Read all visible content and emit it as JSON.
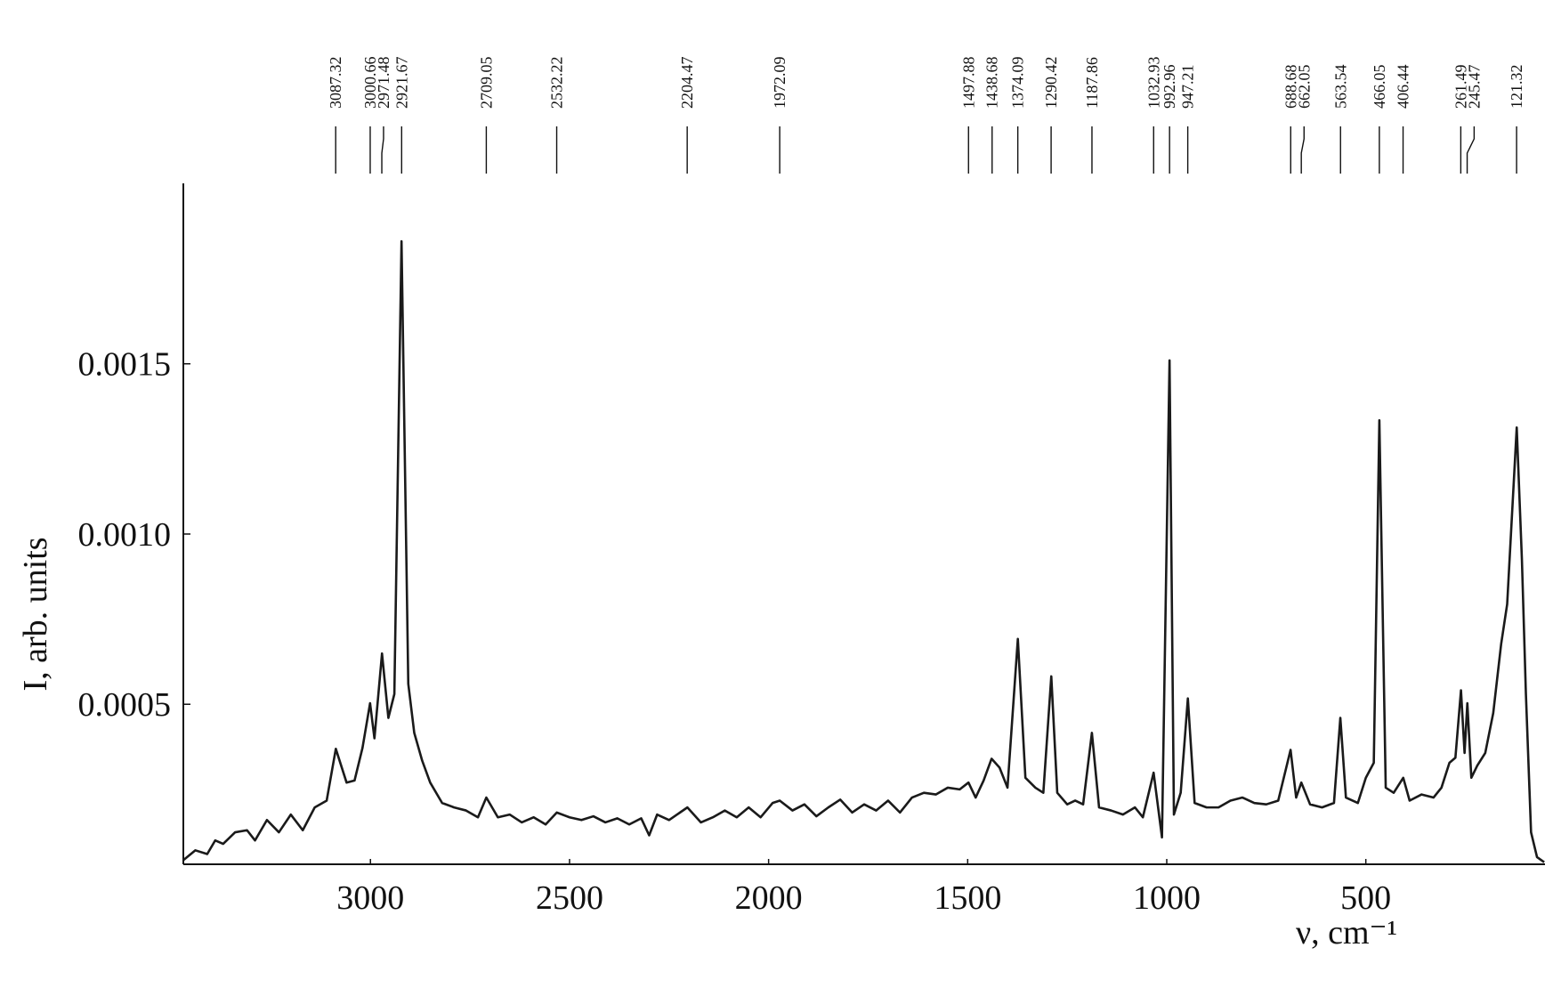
{
  "chart_data": {
    "type": "line",
    "y_label": "I, arb. units",
    "x_label": "ν, cm⁻¹",
    "color": "#1a1a1a",
    "xlim": [
      3470,
      50
    ],
    "ylim": [
      3e-05,
      0.00203
    ],
    "xticks": [
      3000,
      2500,
      2000,
      1500,
      1000,
      500
    ],
    "yticks": [
      0.0005,
      {
        "value": 0.001,
        "label": "0.0010"
      },
      0.0015
    ],
    "peak_labels": [
      3087.32,
      3000.66,
      2971.48,
      2921.67,
      2709.05,
      2532.22,
      2204.47,
      1972.09,
      1497.88,
      1438.68,
      1374.09,
      1290.42,
      1187.86,
      1032.93,
      992.96,
      947.21,
      688.68,
      662.05,
      563.54,
      466.05,
      406.44,
      261.49,
      245.47,
      121.32
    ],
    "x": [
      3470,
      3440,
      3410,
      3390,
      3370,
      3340,
      3310,
      3290,
      3260,
      3230,
      3200,
      3170,
      3140,
      3110,
      3087,
      3060,
      3040,
      3020,
      3001,
      2990,
      2971,
      2955,
      2940,
      2922,
      2905,
      2890,
      2870,
      2850,
      2820,
      2790,
      2760,
      2730,
      2709,
      2680,
      2650,
      2620,
      2590,
      2560,
      2532,
      2500,
      2470,
      2440,
      2410,
      2380,
      2350,
      2320,
      2300,
      2280,
      2250,
      2204,
      2170,
      2140,
      2110,
      2080,
      2050,
      2020,
      1990,
      1972,
      1940,
      1910,
      1880,
      1850,
      1820,
      1790,
      1760,
      1730,
      1700,
      1670,
      1640,
      1610,
      1580,
      1550,
      1520,
      1498,
      1480,
      1460,
      1440,
      1420,
      1400,
      1374,
      1355,
      1330,
      1310,
      1290,
      1275,
      1250,
      1230,
      1210,
      1188,
      1170,
      1140,
      1110,
      1080,
      1060,
      1033,
      1012,
      993,
      982,
      965,
      947,
      930,
      900,
      870,
      840,
      810,
      780,
      750,
      720,
      689,
      675,
      662,
      640,
      610,
      580,
      564,
      550,
      520,
      500,
      480,
      466,
      450,
      430,
      406,
      390,
      360,
      330,
      310,
      290,
      275,
      261,
      252,
      245,
      235,
      220,
      200,
      180,
      160,
      145,
      121,
      108,
      98,
      85,
      70,
      52
    ],
    "values": [
      4.2e-05,
      7.1e-05,
      6e-05,
      0.0001,
      9e-05,
      0.000124,
      0.00013,
      0.0001,
      0.00016,
      0.000124,
      0.000176,
      0.00013,
      0.000197,
      0.000217,
      0.000369,
      0.00027,
      0.000276,
      0.000372,
      0.000503,
      0.0004,
      0.000649,
      0.00046,
      0.00053,
      0.00186,
      0.00056,
      0.000416,
      0.000334,
      0.00027,
      0.00021,
      0.000197,
      0.000188,
      0.000168,
      0.000226,
      0.000168,
      0.000176,
      0.000153,
      0.000168,
      0.000147,
      0.000182,
      0.000168,
      0.00016,
      0.000171,
      0.000153,
      0.000165,
      0.000147,
      0.000165,
      0.000115,
      0.000176,
      0.00016,
      0.000197,
      0.000153,
      0.000168,
      0.000188,
      0.000168,
      0.000197,
      0.000168,
      0.00021,
      0.000217,
      0.000188,
      0.000206,
      0.000171,
      0.000197,
      0.00022,
      0.000182,
      0.000206,
      0.000188,
      0.000217,
      0.000182,
      0.000226,
      0.00024,
      0.000235,
      0.000255,
      0.00025,
      0.00027,
      0.000226,
      0.000276,
      0.00034,
      0.000314,
      0.000255,
      0.000692,
      0.000284,
      0.000255,
      0.00024,
      0.000582,
      0.00024,
      0.000206,
      0.000217,
      0.000206,
      0.000416,
      0.000197,
      0.000188,
      0.000176,
      0.000197,
      0.000168,
      0.000299,
      0.000109,
      0.00151,
      0.000176,
      0.00024,
      0.000517,
      0.00021,
      0.000197,
      0.000197,
      0.000217,
      0.000226,
      0.00021,
      0.000206,
      0.000217,
      0.000366,
      0.000226,
      0.00027,
      0.000206,
      0.000197,
      0.00021,
      0.00046,
      0.000226,
      0.00021,
      0.000284,
      0.000328,
      0.001334,
      0.000255,
      0.00024,
      0.000284,
      0.000217,
      0.000235,
      0.000226,
      0.000255,
      0.000328,
      0.000343,
      0.000541,
      0.000357,
      0.000503,
      0.000284,
      0.00032,
      0.000357,
      0.000474,
      0.000678,
      0.000794,
      0.001313,
      0.000926,
      0.000532,
      0.000124,
      5.1e-05,
      3.6e-05
    ]
  }
}
